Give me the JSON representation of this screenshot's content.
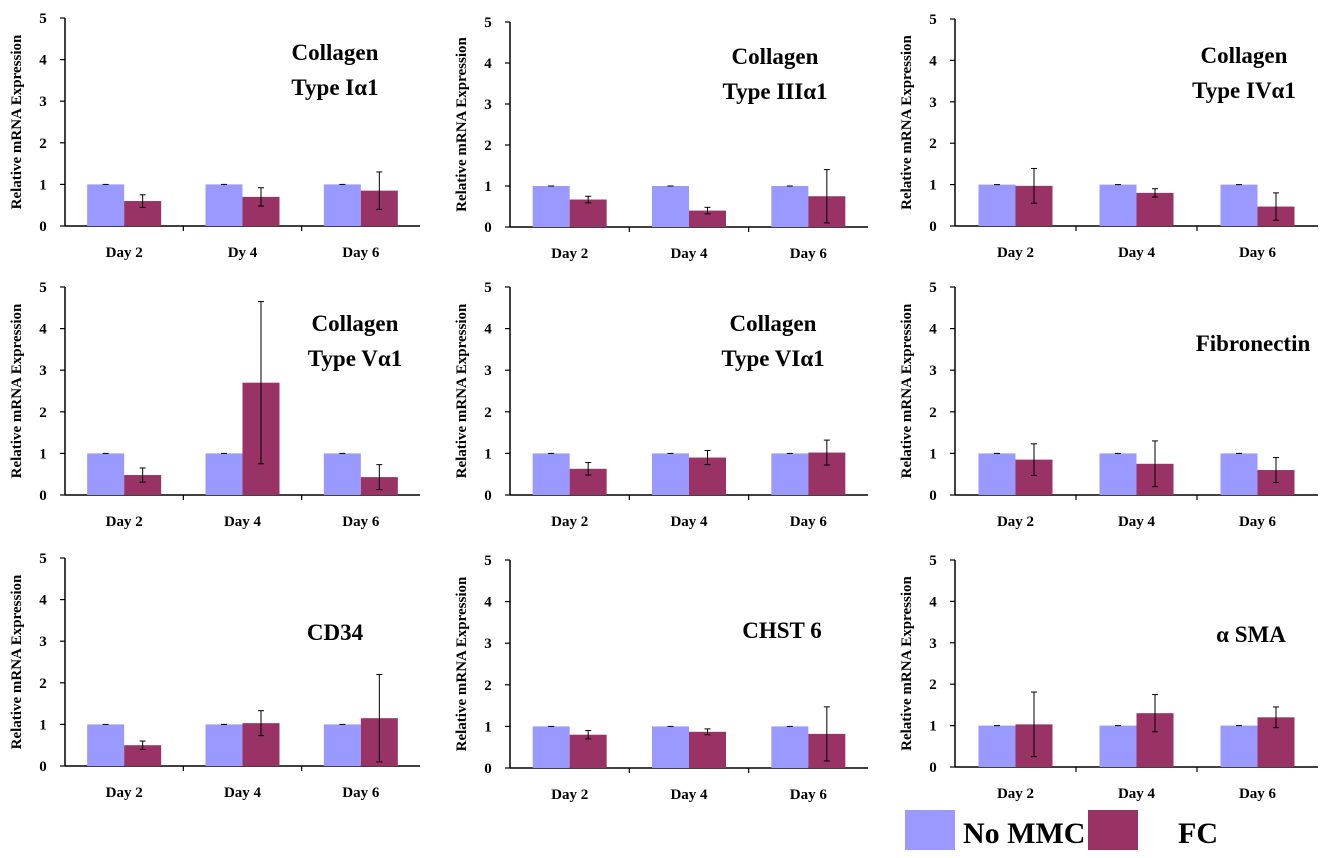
{
  "chart_data": [
    {
      "type": "bar",
      "title": [
        "Collagen",
        "Type Iα1"
      ],
      "ylabel": "Relative mRNA Expression",
      "ylim": [
        0,
        5
      ],
      "yticks": [
        "0",
        "1",
        "2",
        "3",
        "4",
        "5"
      ],
      "categories": [
        "Day 2",
        "Dy 4",
        "Day 6"
      ],
      "series": [
        {
          "name": "No MMC",
          "values": [
            1.0,
            1.0,
            1.0
          ],
          "errors": [
            0.0,
            0.0,
            0.0
          ]
        },
        {
          "name": "FC",
          "values": [
            0.6,
            0.7,
            0.85
          ],
          "errors": [
            0.15,
            0.22,
            0.45
          ]
        }
      ]
    },
    {
      "type": "bar",
      "title": [
        "Collagen",
        "Type IIIα1"
      ],
      "ylabel": "Relative mRNA Expression",
      "ylim": [
        0,
        5
      ],
      "yticks": [
        "0",
        "1",
        "2",
        "3",
        "4",
        "5"
      ],
      "categories": [
        "Day 2",
        "Day 4",
        "Day 6"
      ],
      "series": [
        {
          "name": "No MMC",
          "values": [
            1.0,
            1.0,
            1.0
          ],
          "errors": [
            0.0,
            0.0,
            0.0
          ]
        },
        {
          "name": "FC",
          "values": [
            0.67,
            0.4,
            0.75
          ],
          "errors": [
            0.08,
            0.08,
            0.65
          ]
        }
      ]
    },
    {
      "type": "bar",
      "title": [
        "Collagen",
        "Type IVα1"
      ],
      "ylabel": "Relative mRNA Expression",
      "ylim": [
        0,
        5
      ],
      "yticks": [
        "0",
        "1",
        "2",
        "3",
        "4",
        "5"
      ],
      "categories": [
        "Day 2",
        "Day 4",
        "Day 6"
      ],
      "series": [
        {
          "name": "No MMC",
          "values": [
            1.0,
            1.0,
            1.0
          ],
          "errors": [
            0.0,
            0.0,
            0.0
          ]
        },
        {
          "name": "FC",
          "values": [
            0.97,
            0.8,
            0.47
          ],
          "errors": [
            0.42,
            0.1,
            0.33
          ]
        }
      ]
    },
    {
      "type": "bar",
      "title": [
        "Collagen",
        "Type Vα1"
      ],
      "ylabel": "Relative mRNA Expression",
      "ylim": [
        0,
        5
      ],
      "yticks": [
        "0",
        "1",
        "2",
        "3",
        "4",
        "5"
      ],
      "categories": [
        "Day 2",
        "Day 4",
        "Day 6"
      ],
      "series": [
        {
          "name": "No MMC",
          "values": [
            1.0,
            1.0,
            1.0
          ],
          "errors": [
            0.0,
            0.0,
            0.0
          ]
        },
        {
          "name": "FC",
          "values": [
            0.48,
            2.7,
            0.43
          ],
          "errors": [
            0.17,
            1.95,
            0.3
          ]
        }
      ]
    },
    {
      "type": "bar",
      "title": [
        "Collagen",
        "Type VIα1"
      ],
      "ylabel": "Relative mRNA Expression",
      "ylim": [
        0,
        5
      ],
      "yticks": [
        "0",
        "1",
        "2",
        "3",
        "4",
        "5"
      ],
      "categories": [
        "Day 2",
        "Day 4",
        "Day 6"
      ],
      "series": [
        {
          "name": "No MMC",
          "values": [
            1.0,
            1.0,
            1.0
          ],
          "errors": [
            0.0,
            0.0,
            0.0
          ]
        },
        {
          "name": "FC",
          "values": [
            0.63,
            0.9,
            1.02
          ],
          "errors": [
            0.15,
            0.17,
            0.3
          ]
        }
      ]
    },
    {
      "type": "bar",
      "title": [
        "Fibronectin"
      ],
      "ylabel": "Relative mRNA Expression",
      "ylim": [
        0,
        5
      ],
      "yticks": [
        "0",
        "1",
        "2",
        "3",
        "4",
        "5"
      ],
      "categories": [
        "Day 2",
        "Day 4",
        "Day 6"
      ],
      "series": [
        {
          "name": "No MMC",
          "values": [
            1.0,
            1.0,
            1.0
          ],
          "errors": [
            0.0,
            0.0,
            0.0
          ]
        },
        {
          "name": "FC",
          "values": [
            0.85,
            0.75,
            0.6
          ],
          "errors": [
            0.38,
            0.55,
            0.3
          ]
        }
      ]
    },
    {
      "type": "bar",
      "title": [
        "CD34"
      ],
      "ylabel": "Relative mRNA Expression",
      "ylim": [
        0,
        5
      ],
      "yticks": [
        "0",
        "1",
        "2",
        "3",
        "4",
        "5"
      ],
      "categories": [
        "Day 2",
        "Day 4",
        "Day 6"
      ],
      "series": [
        {
          "name": "No MMC",
          "values": [
            1.0,
            1.0,
            1.0
          ],
          "errors": [
            0.0,
            0.0,
            0.0
          ]
        },
        {
          "name": "FC",
          "values": [
            0.5,
            1.03,
            1.15
          ],
          "errors": [
            0.1,
            0.3,
            1.05
          ]
        }
      ]
    },
    {
      "type": "bar",
      "title": [
        "CHST 6"
      ],
      "ylabel": "Relative mRNA Expression",
      "ylim": [
        0,
        5
      ],
      "yticks": [
        "0",
        "1",
        "2",
        "3",
        "4",
        "5"
      ],
      "categories": [
        "Day 2",
        "Day 4",
        "Day 6"
      ],
      "series": [
        {
          "name": "No MMC",
          "values": [
            1.0,
            1.0,
            1.0
          ],
          "errors": [
            0.0,
            0.0,
            0.0
          ]
        },
        {
          "name": "FC",
          "values": [
            0.8,
            0.87,
            0.82
          ],
          "errors": [
            0.1,
            0.07,
            0.65
          ]
        }
      ]
    },
    {
      "type": "bar",
      "title": [
        "α SMA"
      ],
      "ylabel": "Relative mRNA Expression",
      "ylim": [
        0,
        5
      ],
      "yticks": [
        "0",
        "1",
        "2",
        "3",
        "4",
        "5"
      ],
      "categories": [
        "Day 2",
        "Day 4",
        "Day 6"
      ],
      "series": [
        {
          "name": "No MMC",
          "values": [
            1.0,
            1.0,
            1.0
          ],
          "errors": [
            0.0,
            0.0,
            0.0
          ]
        },
        {
          "name": "FC",
          "values": [
            1.03,
            1.3,
            1.2
          ],
          "errors": [
            0.78,
            0.45,
            0.25
          ]
        }
      ]
    }
  ],
  "legend": {
    "position": "bottom-right",
    "items": [
      {
        "label": "No MMC",
        "color": "#9999ff"
      },
      {
        "label": "FC",
        "color": "#993366"
      }
    ]
  },
  "colors": {
    "no_mmc": "#9999ff",
    "fc": "#993366",
    "axis": "#000000"
  }
}
